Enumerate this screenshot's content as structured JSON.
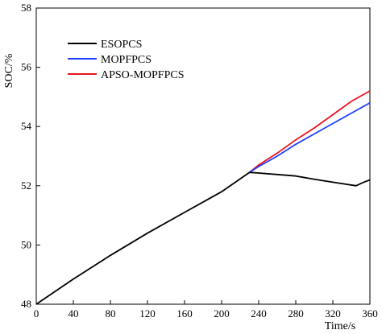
{
  "chart_data": {
    "type": "line",
    "title": "",
    "xlabel": "Time/s",
    "ylabel": "SOC/%",
    "xlim": [
      0,
      360
    ],
    "ylim": [
      48,
      58
    ],
    "xticks": [
      "0",
      "40",
      "80",
      "120",
      "160",
      "200",
      "240",
      "280",
      "320",
      "360"
    ],
    "yticks": [
      "48",
      "50",
      "52",
      "54",
      "56",
      "58"
    ],
    "grid": false,
    "legend_position": "top-left",
    "series": [
      {
        "name": "ESOPCS",
        "color": "#000000",
        "x": [
          0,
          40,
          80,
          120,
          160,
          200,
          230,
          240,
          260,
          280,
          300,
          320,
          345,
          352,
          360
        ],
        "y": [
          48.0,
          48.85,
          49.65,
          50.4,
          51.1,
          51.8,
          52.45,
          52.43,
          52.38,
          52.33,
          52.22,
          52.12,
          52.0,
          52.1,
          52.2
        ]
      },
      {
        "name": "MOPFPCS",
        "color": "#1f3fff",
        "x": [
          230,
          240,
          260,
          280,
          300,
          320,
          340,
          360
        ],
        "y": [
          52.45,
          52.65,
          53.0,
          53.4,
          53.75,
          54.1,
          54.45,
          54.8
        ]
      },
      {
        "name": "APSO-MOPFPCS",
        "color": "#e8141e",
        "x": [
          230,
          240,
          260,
          280,
          300,
          320,
          340,
          360
        ],
        "y": [
          52.45,
          52.7,
          53.1,
          53.55,
          53.95,
          54.4,
          54.85,
          55.2
        ]
      }
    ]
  }
}
